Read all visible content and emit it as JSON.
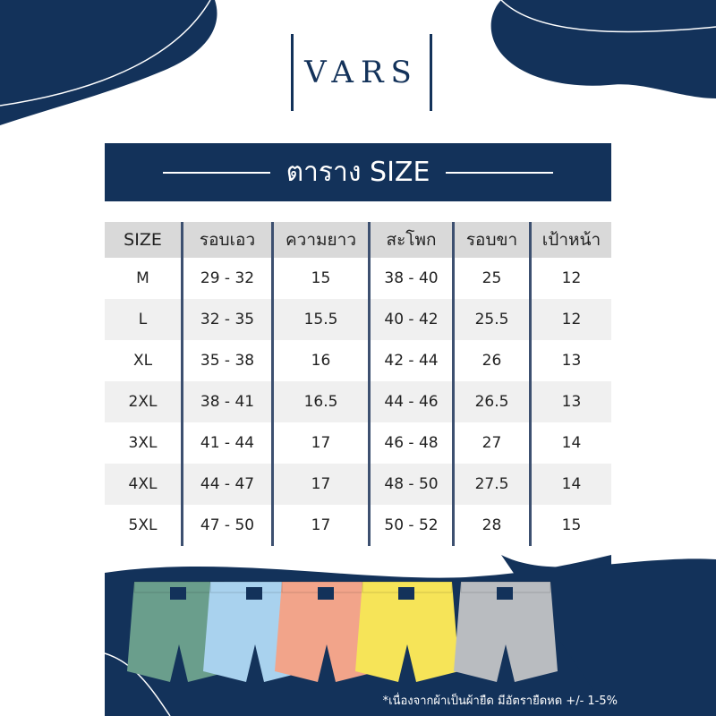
{
  "brand": "VARS",
  "banner_title": "ตาราง SIZE",
  "table": {
    "headers": [
      "SIZE",
      "รอบเอว",
      "ความยาว",
      "สะโพก",
      "รอบขา",
      "เป้าหน้า"
    ],
    "rows": [
      [
        "M",
        "29 - 32",
        "15",
        "38 - 40",
        "25",
        "12"
      ],
      [
        "L",
        "32 - 35",
        "15.5",
        "40 - 42",
        "25.5",
        "12"
      ],
      [
        "XL",
        "35 - 38",
        "16",
        "42 - 44",
        "26",
        "13"
      ],
      [
        "2XL",
        "38 - 41",
        "16.5",
        "44 - 46",
        "26.5",
        "13"
      ],
      [
        "3XL",
        "41 - 44",
        "17",
        "46 - 48",
        "27",
        "14"
      ],
      [
        "4XL",
        "44 - 47",
        "17",
        "48 - 50",
        "27.5",
        "14"
      ],
      [
        "5XL",
        "47 - 50",
        "17",
        "50 - 52",
        "28",
        "15"
      ]
    ]
  },
  "footnote": "*เนื่องจากผ้าเป็นผ้ายืด มีอัตรายืดหด +/- 1-5%",
  "colors": {
    "navy": "#13325a",
    "shorts": [
      "#6a9e8c",
      "#a9d2ee",
      "#f2a48a",
      "#f6e458",
      "#b9bcc0"
    ]
  }
}
